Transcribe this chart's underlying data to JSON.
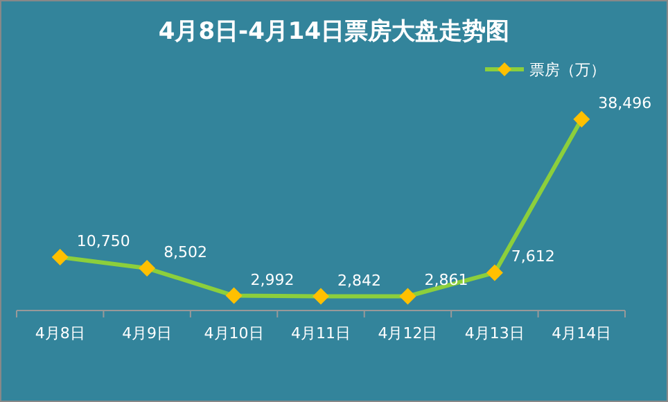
{
  "chart_data": {
    "type": "line",
    "title": "4月8日-4月14日票房大盘走势图",
    "categories": [
      "4月8日",
      "4月9日",
      "4月10日",
      "4月11日",
      "4月12日",
      "4月13日",
      "4月14日"
    ],
    "series": [
      {
        "name": "票房（万）",
        "color": "#8ccf3c",
        "colors": [
          "#ffc000",
          "#ffc000",
          "#ffc000",
          "#ffc000",
          "#ffc000",
          "#ffc000",
          "#ffc000"
        ],
        "values": [
          10750,
          8502,
          2992,
          2842,
          2861,
          7612,
          38496
        ],
        "value_labels": [
          "10,750",
          "8,502",
          "2,992",
          "2,842",
          "2,861",
          "7,612",
          "38,496"
        ]
      }
    ],
    "marker": "diamond",
    "legend": "top right"
  }
}
